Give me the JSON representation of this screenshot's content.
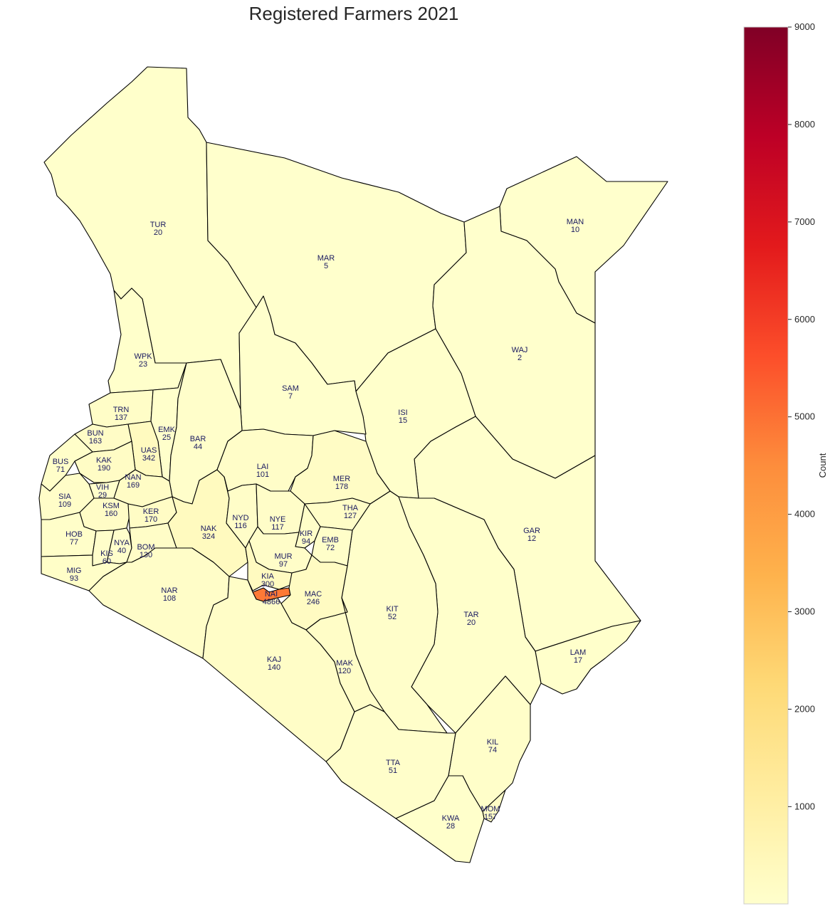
{
  "title": "Registered Farmers 2021",
  "colorbar": {
    "label": "Count",
    "min": 2,
    "max": 9000,
    "ticks": [
      1000,
      2000,
      3000,
      4000,
      5000,
      6000,
      7000,
      8000,
      9000
    ],
    "colors": [
      "#ffffcc",
      "#ffeda0",
      "#fed976",
      "#feb24c",
      "#fd8d3c",
      "#fc4e2a",
      "#e31a1c",
      "#bd0026",
      "#800026"
    ]
  },
  "counties": [
    {
      "code": "TUR",
      "count": 20
    },
    {
      "code": "MAR",
      "count": 5
    },
    {
      "code": "MAN",
      "count": 10
    },
    {
      "code": "WAJ",
      "count": 2
    },
    {
      "code": "WPK",
      "count": 23
    },
    {
      "code": "SAM",
      "count": 7
    },
    {
      "code": "ISI",
      "count": 15
    },
    {
      "code": "TRN",
      "count": 137
    },
    {
      "code": "BUN",
      "count": 163
    },
    {
      "code": "EMK",
      "count": 25
    },
    {
      "code": "UAS",
      "count": 342
    },
    {
      "code": "BAR",
      "count": 44
    },
    {
      "code": "BUS",
      "count": 71
    },
    {
      "code": "KAK",
      "count": 190
    },
    {
      "code": "LAI",
      "count": 101
    },
    {
      "code": "MER",
      "count": 178
    },
    {
      "code": "VIH",
      "count": 29
    },
    {
      "code": "NAN",
      "count": 169
    },
    {
      "code": "SIA",
      "count": 109
    },
    {
      "code": "KSM",
      "count": 160
    },
    {
      "code": "KER",
      "count": 170
    },
    {
      "code": "THA",
      "count": 127
    },
    {
      "code": "NYD",
      "count": 116
    },
    {
      "code": "NYE",
      "count": 117
    },
    {
      "code": "NAK",
      "count": 324
    },
    {
      "code": "GAR",
      "count": 12
    },
    {
      "code": "HOB",
      "count": 77
    },
    {
      "code": "KIR",
      "count": 94
    },
    {
      "code": "EMB",
      "count": 72
    },
    {
      "code": "NYA",
      "count": 40
    },
    {
      "code": "KIS",
      "count": 60
    },
    {
      "code": "BOM",
      "count": 130
    },
    {
      "code": "MUR",
      "count": 97
    },
    {
      "code": "MIG",
      "count": 93
    },
    {
      "code": "KIA",
      "count": 300
    },
    {
      "code": "NAR",
      "count": 108
    },
    {
      "code": "NAI",
      "count": 4866
    },
    {
      "code": "MAC",
      "count": 246
    },
    {
      "code": "KIT",
      "count": 52
    },
    {
      "code": "TAR",
      "count": 20
    },
    {
      "code": "LAM",
      "count": 17
    },
    {
      "code": "KAJ",
      "count": 140
    },
    {
      "code": "MAK",
      "count": 120
    },
    {
      "code": "KIL",
      "count": 74
    },
    {
      "code": "TTA",
      "count": 51
    },
    {
      "code": "MOM",
      "count": 157
    },
    {
      "code": "KWA",
      "count": 28
    }
  ]
}
